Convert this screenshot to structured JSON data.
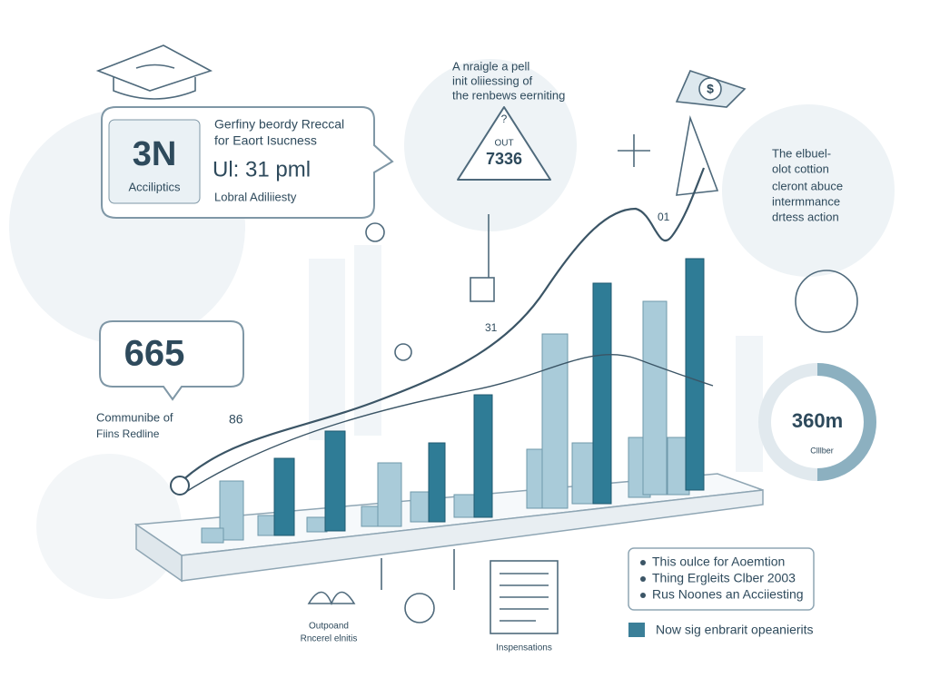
{
  "header_callout": {
    "metric": "3N",
    "metric_label": "Acciliptics",
    "lines": [
      "Gerfiny beordy Rreccal",
      "for Eaort Isucness"
    ],
    "value": "Ul: 31 pml",
    "caption": "Lobral Adiliiesty"
  },
  "top_note": {
    "lines": [
      "A nraigle a pell",
      "init oliiessing of",
      "the renbews eerniting"
    ]
  },
  "triangle": {
    "symbol": "?",
    "label": "OUT",
    "value": "7336"
  },
  "right_note": {
    "lines": [
      "The elbuel-",
      "olot cottion",
      "cleront abuce",
      "intermmance",
      "drtess action"
    ]
  },
  "left_callout": {
    "value": "665",
    "caption": [
      "Communibe of",
      "Fiins Redline"
    ]
  },
  "chart_marks": {
    "a": "86",
    "b": "31",
    "c": "01"
  },
  "gauge": {
    "value": "360m",
    "label": "Clllber"
  },
  "bottom_icons": {
    "left": [
      "Outpoand",
      "Rncerel elnitis"
    ],
    "right": "Inspensations"
  },
  "list": {
    "items": [
      "This oulce for Aoemtion",
      "Thing Ergleits Clber 2003",
      "Rus Noones an Acciiesting"
    ]
  },
  "legend": {
    "label": "Now sig enbrarit opeanierits"
  }
}
